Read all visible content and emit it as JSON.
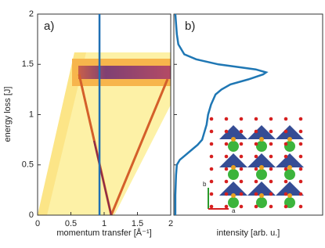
{
  "chart_data": [
    {
      "type": "heatmap",
      "panel_label": "a)",
      "xlabel": "momentum transfer [Å⁻¹]",
      "ylabel": "energy loss [J]",
      "xlim": [
        0,
        2
      ],
      "ylim": [
        0,
        2
      ],
      "xticks": [
        0,
        0.5,
        1,
        1.5,
        2
      ],
      "yticks": [
        0,
        0.5,
        1,
        1.5,
        2
      ],
      "cut_x": 0.93,
      "cut_color": "#1f6fb4"
    },
    {
      "type": "line",
      "panel_label": "b)",
      "xlabel": "intensity [arb. u.]",
      "xlim": [
        0,
        1
      ],
      "ylim": [
        0,
        2
      ],
      "color": "#1f77b4",
      "y": [
        0,
        0.2,
        0.4,
        0.5,
        0.55,
        0.6,
        0.65,
        0.7,
        0.75,
        0.8,
        0.9,
        1.0,
        1.1,
        1.2,
        1.25,
        1.3,
        1.35,
        1.4,
        1.42,
        1.45,
        1.5,
        1.55,
        1.6,
        1.7,
        1.8,
        2.0
      ],
      "values": [
        0.01,
        0.01,
        0.015,
        0.02,
        0.04,
        0.08,
        0.12,
        0.16,
        0.19,
        0.2,
        0.22,
        0.23,
        0.25,
        0.28,
        0.32,
        0.38,
        0.5,
        0.6,
        0.62,
        0.55,
        0.3,
        0.15,
        0.07,
        0.03,
        0.02,
        0.01
      ],
      "inset_axis_labels": [
        "b",
        "a"
      ]
    }
  ]
}
